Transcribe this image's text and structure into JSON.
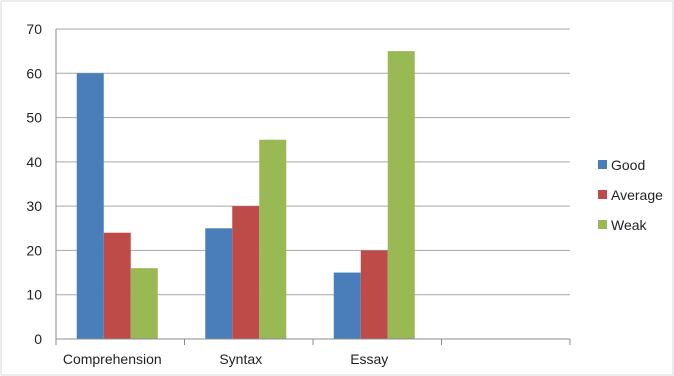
{
  "chart_data": {
    "type": "bar",
    "categories": [
      "Comprehension",
      "Syntax",
      "Essay"
    ],
    "series": [
      {
        "name": "Good",
        "values": [
          60,
          25,
          15
        ],
        "color": "#4a7ebb"
      },
      {
        "name": "Average",
        "values": [
          24,
          30,
          20
        ],
        "color": "#be4b48"
      },
      {
        "name": "Weak",
        "values": [
          16,
          45,
          65
        ],
        "color": "#98b954"
      }
    ],
    "ylim": [
      0,
      70
    ],
    "yticks": [
      0,
      10,
      20,
      30,
      40,
      50,
      60,
      70
    ],
    "grid": true,
    "legend_position": "right",
    "title": "",
    "xlabel": "",
    "ylabel": ""
  }
}
